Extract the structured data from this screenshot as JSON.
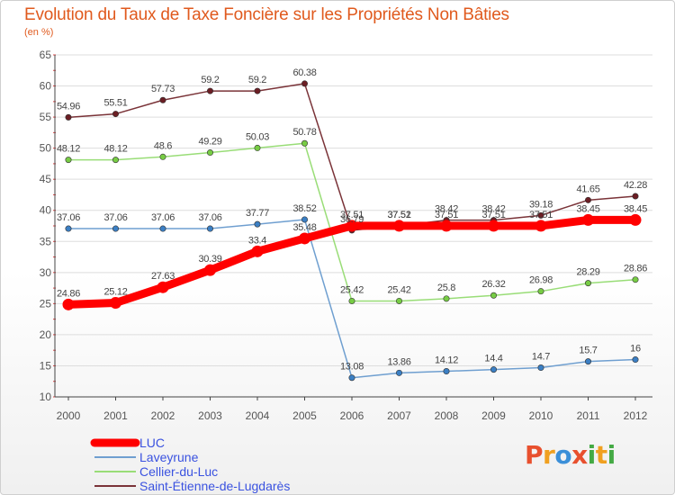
{
  "chart_data": {
    "type": "line",
    "title": "Evolution du Taux de Taxe Foncière sur les Propriétés Non Bâties",
    "ylabel": "(en %)",
    "xlabel": "",
    "ylim": [
      10,
      65
    ],
    "yticks": [
      10,
      15,
      20,
      25,
      30,
      35,
      40,
      45,
      50,
      55,
      60,
      65
    ],
    "categories": [
      "2000",
      "2001",
      "2002",
      "2003",
      "2004",
      "2005",
      "2006",
      "2007",
      "2008",
      "2009",
      "2010",
      "2011",
      "2012"
    ],
    "legend_position": "bottom-left",
    "series": [
      {
        "name": "LUC",
        "color": "#ff0000",
        "point_color": "#ff0000",
        "values": [
          24.86,
          25.12,
          27.63,
          30.39,
          33.4,
          35.48,
          37.51,
          37.51,
          37.51,
          37.51,
          37.51,
          38.45,
          38.45
        ],
        "labels": [
          "24.86",
          "25.12",
          "27.63",
          "30.39",
          "33.4",
          "35.48",
          "37.51",
          "37.51",
          "37.51",
          "37.51",
          "37.51",
          "38.45",
          "38.45"
        ]
      },
      {
        "name": "Laveyrune",
        "color": "#6f9fd0",
        "point_color": "#3b7fc4",
        "values": [
          37.06,
          37.06,
          37.06,
          37.06,
          37.77,
          38.52,
          13.08,
          13.86,
          14.12,
          14.4,
          14.7,
          15.7,
          16
        ],
        "labels": [
          "37.06",
          "37.06",
          "37.06",
          "37.06",
          "37.77",
          "38.52",
          "13.08",
          "13.86",
          "14.12",
          "14.4",
          "14.7",
          "15.7",
          "16"
        ]
      },
      {
        "name": "Cellier-du-Luc",
        "color": "#99dd77",
        "point_color": "#77cc44",
        "values": [
          48.12,
          48.12,
          48.6,
          49.29,
          50.03,
          50.78,
          25.42,
          25.42,
          25.8,
          26.32,
          26.98,
          28.29,
          28.86
        ],
        "labels": [
          "48.12",
          "48.12",
          "48.6",
          "49.29",
          "50.03",
          "50.78",
          "25.42",
          "25.42",
          "25.8",
          "26.32",
          "26.98",
          "28.29",
          "28.86"
        ]
      },
      {
        "name": "Saint-Étienne-de-Lugdarès",
        "color": "#7a3338",
        "point_color": "#6b1e24",
        "values": [
          54.96,
          55.51,
          57.73,
          59.2,
          59.2,
          60.38,
          36.79,
          37.52,
          38.42,
          38.42,
          39.18,
          41.65,
          42.28
        ],
        "labels": [
          "54.96",
          "55.51",
          "57.73",
          "59.2",
          "59.2",
          "60.38",
          "36.79",
          "37.52",
          "38.42",
          "38.42",
          "39.18",
          "41.65",
          "42.28"
        ]
      }
    ]
  },
  "logo": {
    "text": "Proxiti",
    "letters": [
      "P",
      "r",
      "o",
      "x",
      "i",
      "t",
      "i"
    ],
    "colors": [
      "#e8502e",
      "#f0a020",
      "#3b8fd8",
      "#e8502e",
      "#44aa44",
      "#f0a020",
      "#44aa44"
    ]
  },
  "colors": {
    "title": "#e05a1e",
    "legend_text": "#3a52e0",
    "axis": "#555555",
    "grid": "#dddddd"
  }
}
